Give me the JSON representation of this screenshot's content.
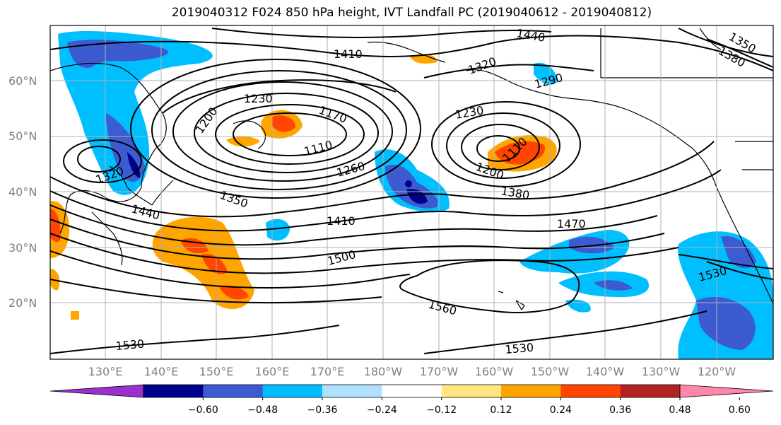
{
  "title": "2019040312 F024 850 hPa height, IVT Landfall PC (2019040612 - 2019040812)",
  "lat_labels": [
    "60°N",
    "50°N",
    "40°N",
    "30°N",
    "20°N"
  ],
  "lon_labels": [
    "130°E",
    "140°E",
    "150°E",
    "160°E",
    "170°E",
    "180°W",
    "170°W",
    "160°W",
    "150°W",
    "140°W",
    "130°W",
    "120°W"
  ],
  "colorbar": {
    "colors": [
      "#9932cc",
      "#00008b",
      "#3d5bd1",
      "#00bfff",
      "#b0e0ff",
      "#ffffff",
      "#ffe680",
      "#ffa500",
      "#ff4500",
      "#b22222",
      "#ff88aa"
    ],
    "tick_labels": [
      "−0.60",
      "−0.48",
      "−0.36",
      "−0.24",
      "−0.12",
      "0.12",
      "0.24",
      "0.36",
      "0.48",
      "0.60"
    ]
  },
  "contour_labels": [
    "1440",
    "1410",
    "1350",
    "1380",
    "1230",
    "1170",
    "1320",
    "1290",
    "1200",
    "1230",
    "1110",
    "1260",
    "1320",
    "1200",
    "1110",
    "1350",
    "1380",
    "1440",
    "1410",
    "1470",
    "1500",
    "1530",
    "1560",
    "1530",
    "1530"
  ]
}
